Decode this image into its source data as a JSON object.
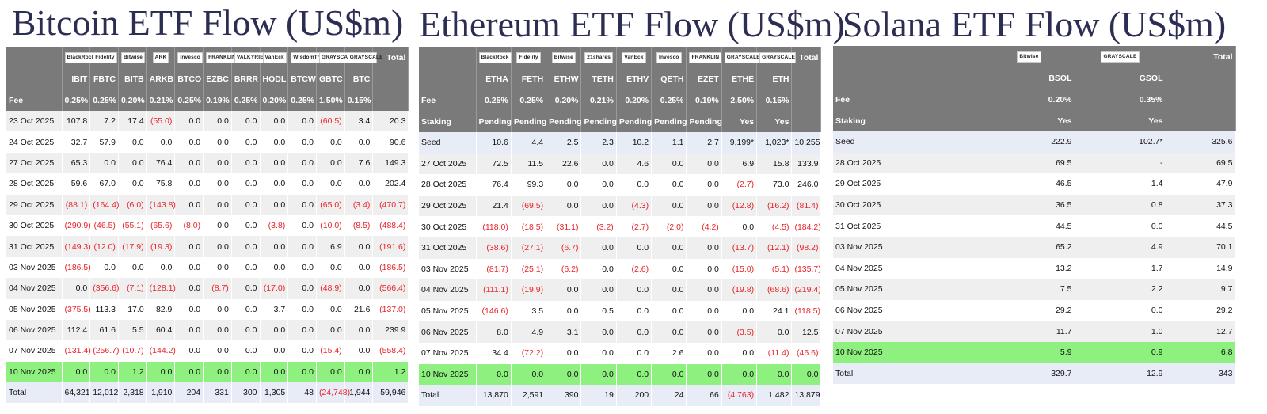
{
  "panels": [
    {
      "title": "Bitcoin ETF Flow (US$m)",
      "logos": [
        "BlackRock",
        "Fidelity",
        "Bitwise",
        "ARK",
        "Invesco",
        "FRANKLIN",
        "VALKYRIE",
        "VanEck",
        "WisdomTree",
        "GRAYSCALE",
        "GRAYSCALE"
      ],
      "total_header": "Total",
      "tickers": [
        "IBIT",
        "FBTC",
        "BITB",
        "ARKB",
        "BTCO",
        "EZBC",
        "BRRR",
        "HODL",
        "BTCW",
        "GBTC",
        "BTC"
      ],
      "extra_headers": [
        {
          "label": "Fee",
          "values": [
            "0.25%",
            "0.25%",
            "0.20%",
            "0.21%",
            "0.25%",
            "0.19%",
            "0.25%",
            "0.20%",
            "0.25%",
            "1.50%",
            "0.15%"
          ],
          "total": ""
        }
      ],
      "rows": [
        {
          "date": "23 Oct 2025",
          "values": [
            "107.8",
            "7.2",
            "17.4",
            "(55.0)",
            "0.0",
            "0.0",
            "0.0",
            "0.0",
            "0.0",
            "(60.5)",
            "3.4"
          ],
          "total": "20.3"
        },
        {
          "date": "24 Oct 2025",
          "values": [
            "32.7",
            "57.9",
            "0.0",
            "0.0",
            "0.0",
            "0.0",
            "0.0",
            "0.0",
            "0.0",
            "0.0",
            "0.0"
          ],
          "total": "90.6"
        },
        {
          "date": "27 Oct 2025",
          "values": [
            "65.3",
            "0.0",
            "0.0",
            "76.4",
            "0.0",
            "0.0",
            "0.0",
            "0.0",
            "0.0",
            "0.0",
            "7.6"
          ],
          "total": "149.3"
        },
        {
          "date": "28 Oct 2025",
          "values": [
            "59.6",
            "67.0",
            "0.0",
            "75.8",
            "0.0",
            "0.0",
            "0.0",
            "0.0",
            "0.0",
            "0.0",
            "0.0"
          ],
          "total": "202.4"
        },
        {
          "date": "29 Oct 2025",
          "values": [
            "(88.1)",
            "(164.4)",
            "(6.0)",
            "(143.8)",
            "0.0",
            "0.0",
            "0.0",
            "0.0",
            "0.0",
            "(65.0)",
            "(3.4)"
          ],
          "total": "(470.7)"
        },
        {
          "date": "30 Oct 2025",
          "values": [
            "(290.9)",
            "(46.5)",
            "(55.1)",
            "(65.6)",
            "(8.0)",
            "0.0",
            "0.0",
            "(3.8)",
            "0.0",
            "(10.0)",
            "(8.5)"
          ],
          "total": "(488.4)"
        },
        {
          "date": "31 Oct 2025",
          "values": [
            "(149.3)",
            "(12.0)",
            "(17.9)",
            "(19.3)",
            "0.0",
            "0.0",
            "0.0",
            "0.0",
            "0.0",
            "6.9",
            "0.0"
          ],
          "total": "(191.6)"
        },
        {
          "date": "03 Nov 2025",
          "values": [
            "(186.5)",
            "0.0",
            "0.0",
            "0.0",
            "0.0",
            "0.0",
            "0.0",
            "0.0",
            "0.0",
            "0.0",
            "0.0"
          ],
          "total": "(186.5)"
        },
        {
          "date": "04 Nov 2025",
          "values": [
            "0.0",
            "(356.6)",
            "(7.1)",
            "(128.1)",
            "0.0",
            "(8.7)",
            "0.0",
            "(17.0)",
            "0.0",
            "(48.9)",
            "0.0"
          ],
          "total": "(566.4)"
        },
        {
          "date": "05 Nov 2025",
          "values": [
            "(375.5)",
            "113.3",
            "17.0",
            "82.9",
            "0.0",
            "0.0",
            "0.0",
            "3.7",
            "0.0",
            "0.0",
            "21.6"
          ],
          "total": "(137.0)"
        },
        {
          "date": "06 Nov 2025",
          "values": [
            "112.4",
            "61.6",
            "5.5",
            "60.4",
            "0.0",
            "0.0",
            "0.0",
            "0.0",
            "0.0",
            "0.0",
            "0.0"
          ],
          "total": "239.9"
        },
        {
          "date": "07 Nov 2025",
          "values": [
            "(131.4)",
            "(256.7)",
            "(10.7)",
            "(144.2)",
            "0.0",
            "0.0",
            "0.0",
            "0.0",
            "0.0",
            "(15.4)",
            "0.0"
          ],
          "total": "(558.4)"
        },
        {
          "date": "10 Nov 2025",
          "values": [
            "0.0",
            "0.0",
            "1.2",
            "0.0",
            "0.0",
            "0.0",
            "0.0",
            "0.0",
            "0.0",
            "0.0",
            "0.0"
          ],
          "total": "1.2"
        }
      ],
      "total_row": {
        "label": "Total",
        "values": [
          "64,321",
          "12,012",
          "2,318",
          "1,910",
          "204",
          "331",
          "300",
          "1,305",
          "48",
          "(24,748)",
          "1,944"
        ],
        "total": "59,946"
      }
    },
    {
      "title": "Ethereum ETF Flow (US$m)",
      "logos": [
        "BlackRock",
        "Fidelity",
        "Bitwise",
        "21shares",
        "VanEck",
        "Invesco",
        "FRANKLIN",
        "GRAYSCALE",
        "GRAYSCALE"
      ],
      "total_header": "Total",
      "tickers": [
        "ETHA",
        "FETH",
        "ETHW",
        "TETH",
        "ETHV",
        "QETH",
        "EZET",
        "ETHE",
        "ETH"
      ],
      "extra_headers": [
        {
          "label": "Fee",
          "values": [
            "0.25%",
            "0.25%",
            "0.20%",
            "0.21%",
            "0.20%",
            "0.25%",
            "0.19%",
            "2.50%",
            "0.15%"
          ],
          "total": ""
        },
        {
          "label": "Staking",
          "values": [
            "Pending",
            "Pending",
            "Pending",
            "Pending",
            "Pending",
            "Pending",
            "Pending",
            "Yes",
            "Yes"
          ],
          "total": ""
        }
      ],
      "rows": [
        {
          "date": "Seed",
          "values": [
            "10.6",
            "4.4",
            "2.5",
            "2.3",
            "10.2",
            "1.1",
            "2.7",
            "9,199*",
            "1,023*"
          ],
          "total": "10,255",
          "seed": true
        },
        {
          "date": "27 Oct 2025",
          "values": [
            "72.5",
            "11.5",
            "22.6",
            "0.0",
            "4.6",
            "0.0",
            "0.0",
            "6.9",
            "15.8"
          ],
          "total": "133.9"
        },
        {
          "date": "28 Oct 2025",
          "values": [
            "76.4",
            "99.3",
            "0.0",
            "0.0",
            "0.0",
            "0.0",
            "0.0",
            "(2.7)",
            "73.0"
          ],
          "total": "246.0"
        },
        {
          "date": "29 Oct 2025",
          "values": [
            "21.4",
            "(69.5)",
            "0.0",
            "0.0",
            "(4.3)",
            "0.0",
            "0.0",
            "(12.8)",
            "(16.2)"
          ],
          "total": "(81.4)"
        },
        {
          "date": "30 Oct 2025",
          "values": [
            "(118.0)",
            "(18.5)",
            "(31.1)",
            "(3.2)",
            "(2.7)",
            "(2.0)",
            "(4.2)",
            "0.0",
            "(4.5)"
          ],
          "total": "(184.2)"
        },
        {
          "date": "31 Oct 2025",
          "values": [
            "(38.6)",
            "(27.1)",
            "(6.7)",
            "0.0",
            "0.0",
            "0.0",
            "0.0",
            "(13.7)",
            "(12.1)"
          ],
          "total": "(98.2)"
        },
        {
          "date": "03 Nov 2025",
          "values": [
            "(81.7)",
            "(25.1)",
            "(6.2)",
            "0.0",
            "(2.6)",
            "0.0",
            "0.0",
            "(15.0)",
            "(5.1)"
          ],
          "total": "(135.7)"
        },
        {
          "date": "04 Nov 2025",
          "values": [
            "(111.1)",
            "(19.9)",
            "0.0",
            "0.0",
            "0.0",
            "0.0",
            "0.0",
            "(19.8)",
            "(68.6)"
          ],
          "total": "(219.4)"
        },
        {
          "date": "05 Nov 2025",
          "values": [
            "(146.6)",
            "3.5",
            "0.0",
            "0.5",
            "0.0",
            "0.0",
            "0.0",
            "0.0",
            "24.1"
          ],
          "total": "(118.5)"
        },
        {
          "date": "06 Nov 2025",
          "values": [
            "8.0",
            "4.9",
            "3.1",
            "0.0",
            "0.0",
            "0.0",
            "0.0",
            "(3.5)",
            "0.0"
          ],
          "total": "12.5"
        },
        {
          "date": "07 Nov 2025",
          "values": [
            "34.4",
            "(72.2)",
            "0.0",
            "0.0",
            "0.0",
            "2.6",
            "0.0",
            "0.0",
            "(11.4)"
          ],
          "total": "(46.6)"
        },
        {
          "date": "10 Nov 2025",
          "values": [
            "0.0",
            "0.0",
            "0.0",
            "0.0",
            "0.0",
            "0.0",
            "0.0",
            "0.0",
            "0.0"
          ],
          "total": "0.0"
        }
      ],
      "total_row": {
        "label": "Total",
        "values": [
          "13,870",
          "2,591",
          "390",
          "19",
          "200",
          "24",
          "66",
          "(4,763)",
          "1,482"
        ],
        "total": "13,879"
      }
    },
    {
      "title": "Solana ETF Flow (US$m)",
      "logos": [
        "Bitwise",
        "GRAYSCALE"
      ],
      "total_header": "Total",
      "tickers": [
        "BSOL",
        "GSOL"
      ],
      "extra_headers": [
        {
          "label": "Fee",
          "values": [
            "0.20%",
            "0.35%"
          ],
          "total": ""
        },
        {
          "label": "Staking",
          "values": [
            "Yes",
            "Yes"
          ],
          "total": ""
        }
      ],
      "rows": [
        {
          "date": "Seed",
          "values": [
            "222.9",
            "102.7*"
          ],
          "total": "325.6",
          "seed": true
        },
        {
          "date": "28 Oct 2025",
          "values": [
            "69.5",
            "-"
          ],
          "total": "69.5"
        },
        {
          "date": "29 Oct 2025",
          "values": [
            "46.5",
            "1.4"
          ],
          "total": "47.9"
        },
        {
          "date": "30 Oct 2025",
          "values": [
            "36.5",
            "0.8"
          ],
          "total": "37.3"
        },
        {
          "date": "31 Oct 2025",
          "values": [
            "44.5",
            "0.0"
          ],
          "total": "44.5"
        },
        {
          "date": "03 Nov 2025",
          "values": [
            "65.2",
            "4.9"
          ],
          "total": "70.1"
        },
        {
          "date": "04 Nov 2025",
          "values": [
            "13.2",
            "1.7"
          ],
          "total": "14.9"
        },
        {
          "date": "05 Nov 2025",
          "values": [
            "7.5",
            "2.2"
          ],
          "total": "9.7"
        },
        {
          "date": "06 Nov 2025",
          "values": [
            "29.2",
            "0.0"
          ],
          "total": "29.2"
        },
        {
          "date": "07 Nov 2025",
          "values": [
            "11.7",
            "1.0"
          ],
          "total": "12.7"
        },
        {
          "date": "10 Nov 2025",
          "values": [
            "5.9",
            "0.9"
          ],
          "total": "6.8"
        }
      ],
      "total_row": {
        "label": "Total",
        "values": [
          "329.7",
          "12.9"
        ],
        "total": "343"
      }
    }
  ],
  "colors": {
    "header_bg": "#7a7a7a",
    "alt_row": "#efefef",
    "seed_total_row": "#e8ecf6",
    "highlight_row": "#8ef07f",
    "negative": "#e8242a",
    "title": "#2b2d52"
  }
}
